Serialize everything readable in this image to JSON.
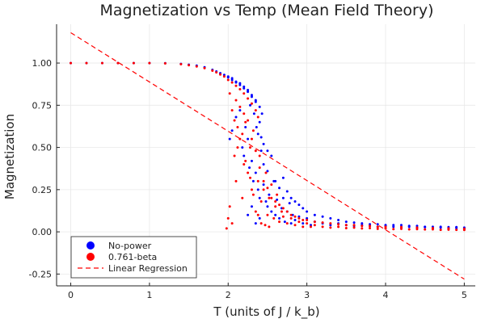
{
  "chart_data": {
    "type": "scatter",
    "title": "Magnetization vs Temp (Mean Field Theory)",
    "xlabel": "T (units of J / k_b)",
    "ylabel": "Magnetization",
    "xlim": [
      -0.18,
      5.14
    ],
    "ylim": [
      -0.32,
      1.23
    ],
    "xticks": [
      0,
      1,
      2,
      3,
      4,
      5
    ],
    "xtick_labels": [
      "0",
      "1",
      "2",
      "3",
      "4",
      "5"
    ],
    "yticks": [
      -0.25,
      0.0,
      0.25,
      0.5,
      0.75,
      1.0
    ],
    "ytick_labels": [
      "-0.25",
      "0.00",
      "0.25",
      "0.50",
      "0.75",
      "1.00"
    ],
    "grid": true,
    "legend_position": "bottom-left",
    "series": [
      {
        "name": "No-power",
        "kind": "scatter",
        "color": "#0000ff",
        "points": [
          [
            0.0,
            1.0
          ],
          [
            0.2,
            1.0
          ],
          [
            0.4,
            1.0
          ],
          [
            0.6,
            1.0
          ],
          [
            0.8,
            1.0
          ],
          [
            1.0,
            1.0
          ],
          [
            1.2,
            0.999
          ],
          [
            1.4,
            0.995
          ],
          [
            1.5,
            0.99
          ],
          [
            1.6,
            0.985
          ],
          [
            1.7,
            0.975
          ],
          [
            1.8,
            0.96
          ],
          [
            1.85,
            0.95
          ],
          [
            1.9,
            0.94
          ],
          [
            1.95,
            0.93
          ],
          [
            2.0,
            0.915
          ],
          [
            2.05,
            0.9
          ],
          [
            2.1,
            0.885
          ],
          [
            2.15,
            0.87
          ],
          [
            2.2,
            0.85
          ],
          [
            2.25,
            0.83
          ],
          [
            2.3,
            0.8
          ],
          [
            2.35,
            0.77
          ],
          [
            2.4,
            0.74
          ],
          [
            2.43,
            0.7
          ],
          [
            2.0,
            0.92
          ],
          [
            2.05,
            0.91
          ],
          [
            2.1,
            0.89
          ],
          [
            2.15,
            0.88
          ],
          [
            2.2,
            0.86
          ],
          [
            2.25,
            0.84
          ],
          [
            2.3,
            0.81
          ],
          [
            2.35,
            0.78
          ],
          [
            2.02,
            0.55
          ],
          [
            2.05,
            0.6
          ],
          [
            2.1,
            0.68
          ],
          [
            2.15,
            0.72
          ],
          [
            2.18,
            0.5
          ],
          [
            2.2,
            0.45
          ],
          [
            2.22,
            0.62
          ],
          [
            2.25,
            0.55
          ],
          [
            2.27,
            0.38
          ],
          [
            2.3,
            0.42
          ],
          [
            2.32,
            0.3
          ],
          [
            2.35,
            0.35
          ],
          [
            2.38,
            0.25
          ],
          [
            2.4,
            0.2
          ],
          [
            2.42,
            0.48
          ],
          [
            2.45,
            0.28
          ],
          [
            2.48,
            0.18
          ],
          [
            2.5,
            0.15
          ],
          [
            2.52,
            0.22
          ],
          [
            2.55,
            0.12
          ],
          [
            2.58,
            0.3
          ],
          [
            2.6,
            0.1
          ],
          [
            2.62,
            0.19
          ],
          [
            2.65,
            0.08
          ],
          [
            2.68,
            0.14
          ],
          [
            2.7,
            0.2
          ],
          [
            2.72,
            0.06
          ],
          [
            2.75,
            0.12
          ],
          [
            2.78,
            0.17
          ],
          [
            2.8,
            0.05
          ],
          [
            2.82,
            0.1
          ],
          [
            2.85,
            0.07
          ],
          [
            2.9,
            0.09
          ],
          [
            2.95,
            0.05
          ],
          [
            3.0,
            0.08
          ],
          [
            3.05,
            0.04
          ],
          [
            3.1,
            0.06
          ],
          [
            3.2,
            0.05
          ],
          [
            3.3,
            0.04
          ],
          [
            3.4,
            0.05
          ],
          [
            3.5,
            0.04
          ],
          [
            3.6,
            0.035
          ],
          [
            3.7,
            0.04
          ],
          [
            3.8,
            0.035
          ],
          [
            3.9,
            0.03
          ],
          [
            4.0,
            0.035
          ],
          [
            4.1,
            0.03
          ],
          [
            4.2,
            0.028
          ],
          [
            4.3,
            0.03
          ],
          [
            4.4,
            0.025
          ],
          [
            4.5,
            0.028
          ],
          [
            4.6,
            0.022
          ],
          [
            4.7,
            0.025
          ],
          [
            4.8,
            0.02
          ],
          [
            4.9,
            0.022
          ],
          [
            5.0,
            0.02
          ],
          [
            2.25,
            0.1
          ],
          [
            2.3,
            0.15
          ],
          [
            2.35,
            0.05
          ],
          [
            2.4,
            0.08
          ],
          [
            2.45,
            0.4
          ],
          [
            2.5,
            0.36
          ],
          [
            2.55,
            0.45
          ],
          [
            2.6,
            0.3
          ],
          [
            2.65,
            0.26
          ],
          [
            2.7,
            0.32
          ],
          [
            2.75,
            0.24
          ],
          [
            2.8,
            0.2
          ],
          [
            2.85,
            0.18
          ],
          [
            2.9,
            0.16
          ],
          [
            2.95,
            0.14
          ],
          [
            3.0,
            0.12
          ],
          [
            3.1,
            0.1
          ],
          [
            3.2,
            0.09
          ],
          [
            3.3,
            0.08
          ],
          [
            3.4,
            0.07
          ],
          [
            3.5,
            0.06
          ],
          [
            3.6,
            0.055
          ],
          [
            3.7,
            0.05
          ],
          [
            3.8,
            0.045
          ],
          [
            3.9,
            0.045
          ],
          [
            4.0,
            0.04
          ],
          [
            4.1,
            0.04
          ],
          [
            4.2,
            0.04
          ],
          [
            4.3,
            0.035
          ],
          [
            4.4,
            0.035
          ],
          [
            4.5,
            0.03
          ],
          [
            4.6,
            0.03
          ],
          [
            4.7,
            0.03
          ],
          [
            4.8,
            0.028
          ],
          [
            4.9,
            0.028
          ],
          [
            5.0,
            0.025
          ],
          [
            2.38,
            0.58
          ],
          [
            2.4,
            0.65
          ],
          [
            2.33,
            0.7
          ],
          [
            2.28,
            0.75
          ],
          [
            2.45,
            0.52
          ],
          [
            2.5,
            0.48
          ],
          [
            2.36,
            0.62
          ],
          [
            2.42,
            0.56
          ]
        ]
      },
      {
        "name": "0.761-beta",
        "kind": "scatter",
        "color": "#ff0000",
        "points": [
          [
            0.0,
            1.0
          ],
          [
            0.2,
            1.0
          ],
          [
            0.4,
            1.0
          ],
          [
            0.6,
            1.0
          ],
          [
            0.8,
            1.0
          ],
          [
            1.0,
            1.0
          ],
          [
            1.2,
            0.998
          ],
          [
            1.4,
            0.993
          ],
          [
            1.5,
            0.987
          ],
          [
            1.6,
            0.98
          ],
          [
            1.7,
            0.97
          ],
          [
            1.8,
            0.955
          ],
          [
            1.85,
            0.945
          ],
          [
            1.9,
            0.932
          ],
          [
            1.95,
            0.92
          ],
          [
            2.0,
            0.9
          ],
          [
            2.05,
            0.885
          ],
          [
            2.1,
            0.865
          ],
          [
            2.15,
            0.845
          ],
          [
            2.2,
            0.82
          ],
          [
            2.25,
            0.79
          ],
          [
            2.3,
            0.76
          ],
          [
            2.35,
            0.72
          ],
          [
            2.38,
            0.68
          ],
          [
            1.98,
            0.02
          ],
          [
            2.0,
            0.08
          ],
          [
            2.02,
            0.15
          ],
          [
            2.05,
            0.05
          ],
          [
            2.08,
            0.45
          ],
          [
            2.1,
            0.3
          ],
          [
            2.12,
            0.62
          ],
          [
            2.15,
            0.55
          ],
          [
            2.18,
            0.2
          ],
          [
            2.2,
            0.4
          ],
          [
            2.22,
            0.65
          ],
          [
            2.25,
            0.35
          ],
          [
            2.28,
            0.5
          ],
          [
            2.3,
            0.25
          ],
          [
            2.32,
            0.6
          ],
          [
            2.35,
            0.12
          ],
          [
            2.38,
            0.3
          ],
          [
            2.4,
            0.45
          ],
          [
            2.42,
            0.18
          ],
          [
            2.45,
            0.25
          ],
          [
            2.48,
            0.35
          ],
          [
            2.5,
            0.1
          ],
          [
            2.52,
            0.2
          ],
          [
            2.55,
            0.28
          ],
          [
            2.58,
            0.08
          ],
          [
            2.6,
            0.15
          ],
          [
            2.62,
            0.22
          ],
          [
            2.65,
            0.06
          ],
          [
            2.68,
            0.12
          ],
          [
            2.7,
            0.09
          ],
          [
            2.75,
            0.05
          ],
          [
            2.8,
            0.08
          ],
          [
            2.85,
            0.04
          ],
          [
            2.9,
            0.06
          ],
          [
            2.95,
            0.03
          ],
          [
            3.0,
            0.05
          ],
          [
            3.05,
            0.03
          ],
          [
            3.1,
            0.04
          ],
          [
            3.2,
            0.03
          ],
          [
            3.3,
            0.025
          ],
          [
            3.4,
            0.03
          ],
          [
            3.5,
            0.022
          ],
          [
            3.6,
            0.025
          ],
          [
            3.7,
            0.02
          ],
          [
            3.8,
            0.022
          ],
          [
            3.9,
            0.018
          ],
          [
            4.0,
            0.02
          ],
          [
            4.1,
            0.016
          ],
          [
            4.2,
            0.018
          ],
          [
            4.3,
            0.015
          ],
          [
            4.4,
            0.016
          ],
          [
            4.5,
            0.014
          ],
          [
            4.6,
            0.015
          ],
          [
            4.7,
            0.012
          ],
          [
            4.8,
            0.013
          ],
          [
            4.9,
            0.012
          ],
          [
            5.0,
            0.011
          ],
          [
            2.1,
            0.78
          ],
          [
            2.15,
            0.74
          ],
          [
            2.2,
            0.7
          ],
          [
            2.25,
            0.66
          ],
          [
            2.3,
            0.55
          ],
          [
            2.35,
            0.48
          ],
          [
            2.4,
            0.38
          ],
          [
            2.45,
            0.3
          ],
          [
            2.5,
            0.26
          ],
          [
            2.55,
            0.2
          ],
          [
            2.6,
            0.18
          ],
          [
            2.65,
            0.16
          ],
          [
            2.7,
            0.14
          ],
          [
            2.75,
            0.12
          ],
          [
            2.8,
            0.1
          ],
          [
            2.85,
            0.09
          ],
          [
            2.9,
            0.08
          ],
          [
            2.95,
            0.07
          ],
          [
            3.0,
            0.07
          ],
          [
            3.1,
            0.06
          ],
          [
            3.2,
            0.055
          ],
          [
            3.3,
            0.05
          ],
          [
            3.4,
            0.045
          ],
          [
            3.5,
            0.04
          ],
          [
            3.6,
            0.04
          ],
          [
            3.7,
            0.035
          ],
          [
            3.8,
            0.035
          ],
          [
            3.9,
            0.03
          ],
          [
            4.0,
            0.03
          ],
          [
            4.2,
            0.028
          ],
          [
            4.4,
            0.025
          ],
          [
            4.6,
            0.022
          ],
          [
            4.8,
            0.02
          ],
          [
            5.0,
            0.018
          ],
          [
            2.02,
            0.82
          ],
          [
            2.05,
            0.72
          ],
          [
            2.08,
            0.66
          ],
          [
            2.12,
            0.5
          ],
          [
            2.18,
            0.58
          ],
          [
            2.22,
            0.42
          ],
          [
            2.28,
            0.32
          ],
          [
            2.32,
            0.22
          ],
          [
            2.38,
            0.1
          ],
          [
            2.42,
            0.05
          ],
          [
            2.47,
            0.04
          ],
          [
            2.52,
            0.03
          ]
        ]
      },
      {
        "name": "Linear Regression",
        "kind": "line",
        "style": "dashed",
        "color": "#ff0000",
        "points": [
          [
            0.0,
            1.18
          ],
          [
            5.0,
            -0.28
          ]
        ]
      }
    ]
  }
}
